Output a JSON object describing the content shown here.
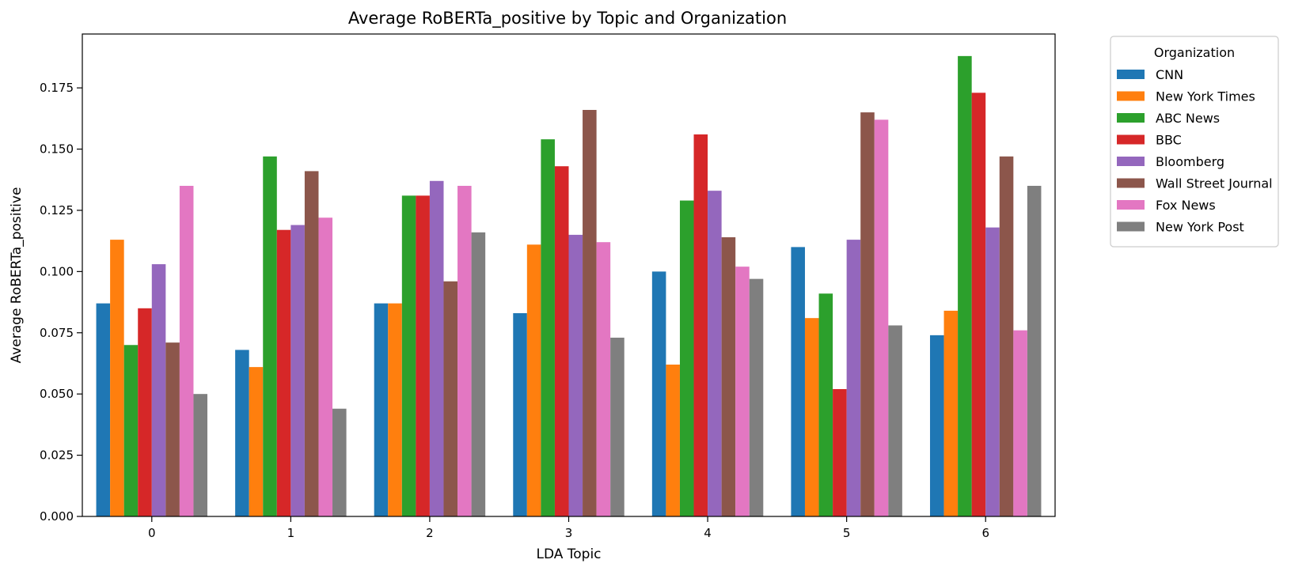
{
  "chart_data": {
    "type": "bar",
    "title": "Average RoBERTa_positive by Topic and Organization",
    "xlabel": "LDA Topic",
    "ylabel": "Average RoBERTa_positive",
    "categories": [
      "0",
      "1",
      "2",
      "3",
      "4",
      "5",
      "6"
    ],
    "ylim": [
      0,
      0.197
    ],
    "yticks": [
      "0.000",
      "0.025",
      "0.050",
      "0.075",
      "0.100",
      "0.125",
      "0.150",
      "0.175"
    ],
    "grid": false,
    "legend": {
      "title": "Organization",
      "placement": "outside-right-top"
    },
    "series": [
      {
        "name": "CNN",
        "color": "#1f77b4",
        "values": [
          0.087,
          0.068,
          0.087,
          0.083,
          0.1,
          0.11,
          0.074
        ]
      },
      {
        "name": "New York Times",
        "color": "#ff7f0e",
        "values": [
          0.113,
          0.061,
          0.087,
          0.111,
          0.062,
          0.081,
          0.084
        ]
      },
      {
        "name": "ABC News",
        "color": "#2ca02c",
        "values": [
          0.07,
          0.147,
          0.131,
          0.154,
          0.129,
          0.091,
          0.188
        ]
      },
      {
        "name": "BBC",
        "color": "#d62728",
        "values": [
          0.085,
          0.117,
          0.131,
          0.143,
          0.156,
          0.052,
          0.173
        ]
      },
      {
        "name": "Bloomberg",
        "color": "#9467bd",
        "values": [
          0.103,
          0.119,
          0.137,
          0.115,
          0.133,
          0.113,
          0.118
        ]
      },
      {
        "name": "Wall Street Journal",
        "color": "#8c564b",
        "values": [
          0.071,
          0.141,
          0.096,
          0.166,
          0.114,
          0.165,
          0.147
        ]
      },
      {
        "name": "Fox News",
        "color": "#e377c2",
        "values": [
          0.135,
          0.122,
          0.135,
          0.112,
          0.102,
          0.162,
          0.076
        ]
      },
      {
        "name": "New York Post",
        "color": "#7f7f7f",
        "values": [
          0.05,
          0.044,
          0.116,
          0.073,
          0.097,
          0.078,
          0.135
        ]
      }
    ]
  }
}
